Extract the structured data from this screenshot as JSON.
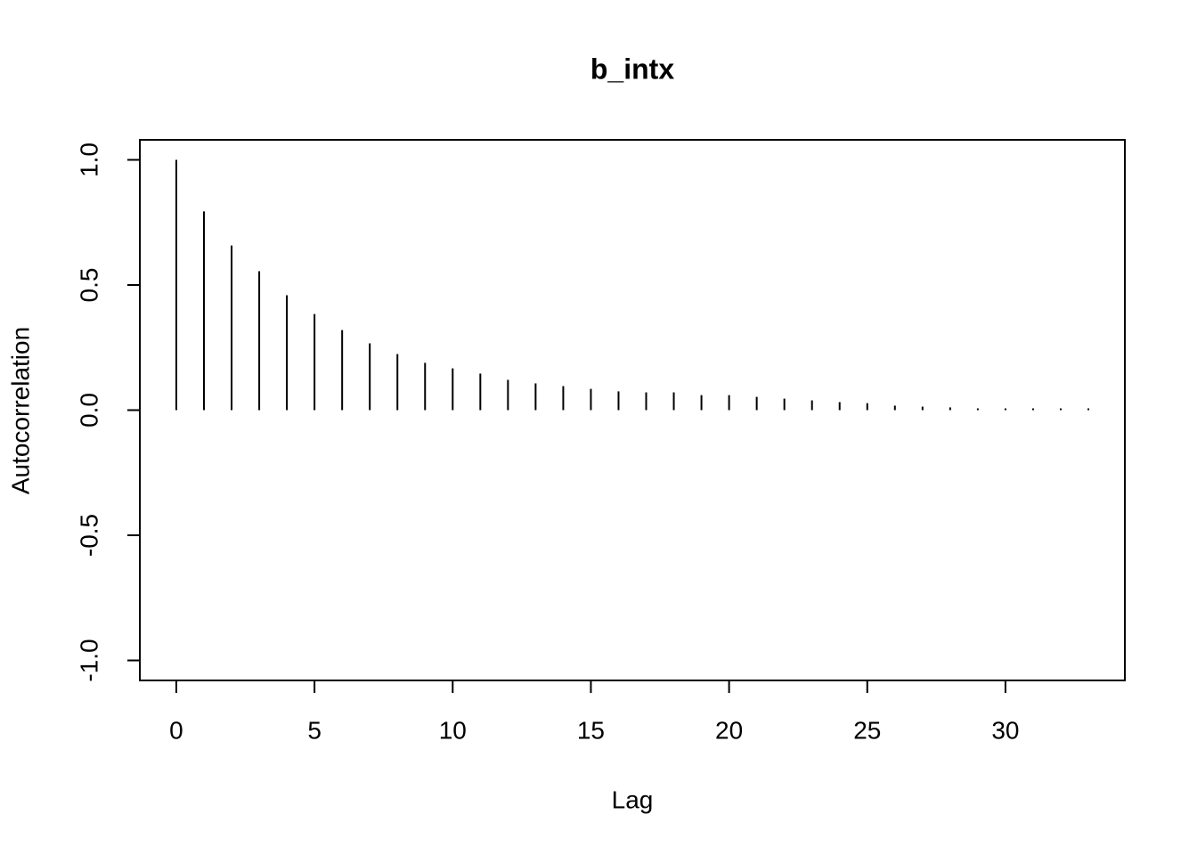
{
  "chart_data": {
    "type": "stem",
    "title": "b_intx",
    "x_label": "Lag",
    "y_label": "Autocorrelation",
    "x": [
      0,
      1,
      2,
      3,
      4,
      5,
      6,
      7,
      8,
      9,
      10,
      11,
      12,
      13,
      14,
      15,
      16,
      17,
      18,
      19,
      20,
      21,
      22,
      23,
      24,
      25,
      26,
      27,
      28,
      29,
      30,
      31,
      32,
      33
    ],
    "values": [
      1.0,
      0.794,
      0.658,
      0.555,
      0.459,
      0.384,
      0.32,
      0.267,
      0.224,
      0.189,
      0.167,
      0.146,
      0.121,
      0.107,
      0.096,
      0.085,
      0.075,
      0.071,
      0.071,
      0.06,
      0.06,
      0.053,
      0.046,
      0.039,
      0.032,
      0.028,
      0.018,
      0.014,
      0.011,
      0.007,
      0.007,
      0.007,
      0.007,
      0.007
    ],
    "color": "#000000",
    "xlim": [
      -1.32,
      34.32
    ],
    "ylim": [
      -1.08,
      1.08
    ],
    "xticks": [
      0,
      5,
      10,
      15,
      20,
      25,
      30
    ],
    "yticks": [
      {
        "value": -1,
        "label": "-1.0"
      },
      {
        "value": -0.5,
        "label": "-0.5"
      },
      {
        "value": 0,
        "label": "0.0"
      },
      {
        "value": 0.5,
        "label": "0.5"
      },
      {
        "value": 1,
        "label": "1.0"
      }
    ]
  }
}
